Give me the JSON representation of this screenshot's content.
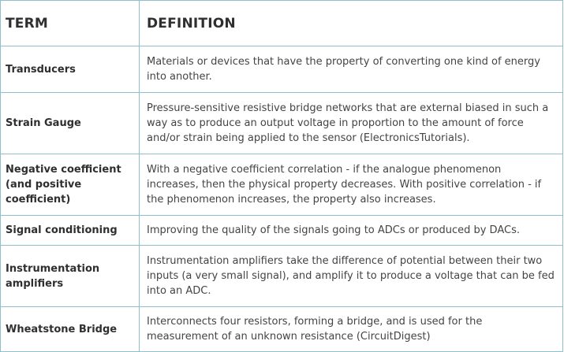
{
  "header": {
    "term": "TERM",
    "definition": "DEFINITION"
  },
  "rows": [
    {
      "term": "Transducers",
      "definition": "Materials or devices that have the property of converting one kind of energy into another."
    },
    {
      "term": "Strain Gauge",
      "definition": "Pressure-sensitive resistive bridge networks that are external biased in such a way as to produce an output voltage in proportion to the amount of force and/or strain being applied to the sensor (ElectronicsTutorials)."
    },
    {
      "term": "Negative coefficient (and positive coefficient)",
      "definition": "With a negative coefficient correlation - if the analogue phenomenon increases, then the physical property decreases. With positive correlation - if the phenomenon increases, the property also increases."
    },
    {
      "term": "Signal conditioning",
      "definition": "Improving the quality of the signals going to ADCs or produced by DACs."
    },
    {
      "term": "Instrumentation amplifiers",
      "definition": "Instrumentation amplifiers take the difference of potential between their two inputs (a very small signal), and amplify it to produce a voltage that can be fed into an ADC."
    },
    {
      "term": "Wheatstone Bridge",
      "definition": "Interconnects four resistors, forming a bridge, and is used for the measurement of an unknown resistance (CircuitDigest)"
    }
  ]
}
